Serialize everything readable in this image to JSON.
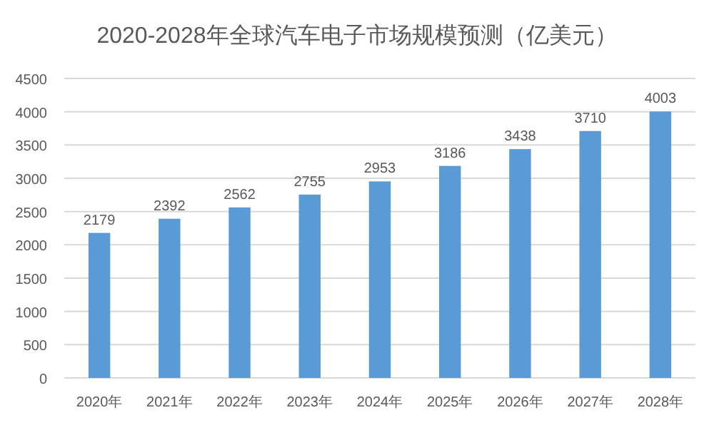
{
  "chart_data": {
    "type": "bar",
    "title": "2020-2028年全球汽车电子市场规模预测（亿美元）",
    "categories": [
      "2020年",
      "2021年",
      "2022年",
      "2023年",
      "2024年",
      "2025年",
      "2026年",
      "2027年",
      "2028年"
    ],
    "values": [
      2179,
      2392,
      2562,
      2755,
      2953,
      3186,
      3438,
      3710,
      4003
    ],
    "color": "#5b9bd5",
    "ylim": [
      0,
      4500
    ],
    "yticks": [
      0,
      500,
      1000,
      1500,
      2000,
      2500,
      3000,
      3500,
      4000,
      4500
    ],
    "grid": "y",
    "data_labels": true
  }
}
